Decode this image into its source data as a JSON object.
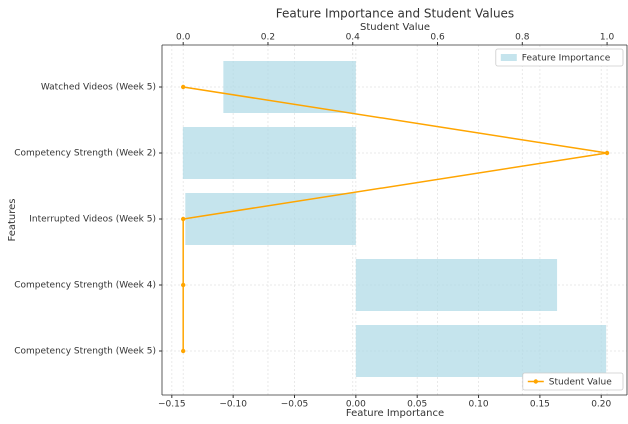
{
  "chart_data": {
    "type": "bar",
    "orientation": "horizontal",
    "title": "Feature Importance and Student Values",
    "xlabel": "Feature Importance",
    "x2label": "Student Value",
    "ylabel": "Features",
    "categories": [
      "Watched Videos (Week 5)",
      "Competency Strength (Week 2)",
      "Interrupted Videos (Week 5)",
      "Competency Strength (Week 4)",
      "Competency Strength (Week 5)"
    ],
    "series": [
      {
        "name": "Feature Importance",
        "type": "bar",
        "color": "#add8e6",
        "values": [
          -0.108,
          -0.141,
          -0.139,
          0.164,
          0.204
        ],
        "legend": "upper right"
      },
      {
        "name": "Student Value",
        "type": "line",
        "axis": "x2",
        "color": "#ffa500",
        "values": [
          0,
          1,
          0,
          0,
          0
        ],
        "legend": "lower right"
      }
    ],
    "xlim": [
      -0.158,
      0.221
    ],
    "xticks": [
      {
        "value": -0.15,
        "label": "−0.15"
      },
      {
        "value": -0.1,
        "label": "−0.10"
      },
      {
        "value": -0.05,
        "label": "−0.05"
      },
      {
        "value": 0,
        "label": "0.00"
      },
      0.05,
      {
        "value": 0.1,
        "label": "0.10"
      },
      0.15,
      {
        "value": 0.2,
        "label": "0.20"
      }
    ],
    "x2lim": [
      -0.05,
      1.047
    ],
    "x2ticks": [
      {
        "value": 0,
        "label": "0.0"
      },
      0.2,
      0.4,
      0.6,
      0.8,
      {
        "value": 1,
        "label": "1.0"
      }
    ],
    "grid": true
  }
}
